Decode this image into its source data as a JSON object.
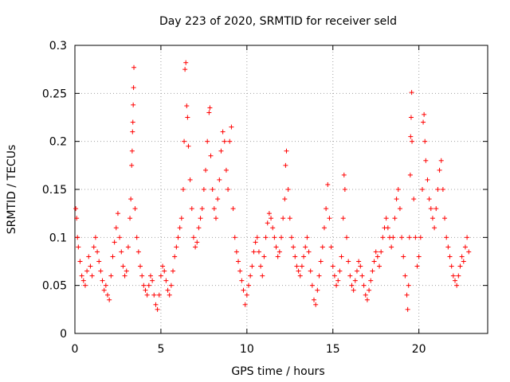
{
  "chart_data": {
    "type": "scatter",
    "title": "Day 223 of 2020, SRMTID for receiver seld",
    "xlabel": "GPS time / hours",
    "ylabel": "SRMTID / TECUs",
    "xlim": [
      0,
      24
    ],
    "ylim": [
      0,
      0.3
    ],
    "xticks": [
      0,
      5,
      10,
      15,
      20
    ],
    "xtick_labels": [
      "0",
      "5",
      "10",
      "15",
      "20"
    ],
    "yticks": [
      0,
      0.05,
      0.1,
      0.15,
      0.2,
      0.25,
      0.3
    ],
    "ytick_labels": [
      "0",
      "0.05",
      "0.1",
      "0.15",
      "0.2",
      "0.25",
      "0.3"
    ],
    "grid": true,
    "marker": "plus",
    "marker_color": "#ff0000",
    "series": [
      {
        "name": "SRMTID",
        "points": [
          [
            0.05,
            0.13
          ],
          [
            0.1,
            0.12
          ],
          [
            0.15,
            0.1
          ],
          [
            0.2,
            0.09
          ],
          [
            0.3,
            0.075
          ],
          [
            0.4,
            0.06
          ],
          [
            0.5,
            0.055
          ],
          [
            0.6,
            0.05
          ],
          [
            0.7,
            0.065
          ],
          [
            0.8,
            0.08
          ],
          [
            0.9,
            0.07
          ],
          [
            1.0,
            0.06
          ],
          [
            1.1,
            0.09
          ],
          [
            1.2,
            0.1
          ],
          [
            1.3,
            0.085
          ],
          [
            1.4,
            0.075
          ],
          [
            1.5,
            0.065
          ],
          [
            1.6,
            0.055
          ],
          [
            1.7,
            0.045
          ],
          [
            1.8,
            0.05
          ],
          [
            1.9,
            0.04
          ],
          [
            2.0,
            0.035
          ],
          [
            2.1,
            0.06
          ],
          [
            2.2,
            0.08
          ],
          [
            2.3,
            0.095
          ],
          [
            2.4,
            0.11
          ],
          [
            2.5,
            0.125
          ],
          [
            2.6,
            0.1
          ],
          [
            2.7,
            0.085
          ],
          [
            2.8,
            0.07
          ],
          [
            2.9,
            0.06
          ],
          [
            3.0,
            0.065
          ],
          [
            3.1,
            0.09
          ],
          [
            3.2,
            0.12
          ],
          [
            3.25,
            0.14
          ],
          [
            3.3,
            0.175
          ],
          [
            3.33,
            0.19
          ],
          [
            3.35,
            0.21
          ],
          [
            3.37,
            0.22
          ],
          [
            3.39,
            0.238
          ],
          [
            3.41,
            0.256
          ],
          [
            3.43,
            0.277
          ],
          [
            3.5,
            0.13
          ],
          [
            3.6,
            0.1
          ],
          [
            3.7,
            0.085
          ],
          [
            3.8,
            0.07
          ],
          [
            3.9,
            0.06
          ],
          [
            4.0,
            0.05
          ],
          [
            4.1,
            0.045
          ],
          [
            4.2,
            0.04
          ],
          [
            4.3,
            0.05
          ],
          [
            4.4,
            0.06
          ],
          [
            4.5,
            0.055
          ],
          [
            4.6,
            0.04
          ],
          [
            4.7,
            0.03
          ],
          [
            4.8,
            0.025
          ],
          [
            4.9,
            0.04
          ],
          [
            5.0,
            0.06
          ],
          [
            5.1,
            0.07
          ],
          [
            5.2,
            0.065
          ],
          [
            5.3,
            0.055
          ],
          [
            5.4,
            0.045
          ],
          [
            5.5,
            0.04
          ],
          [
            5.6,
            0.05
          ],
          [
            5.7,
            0.065
          ],
          [
            5.8,
            0.08
          ],
          [
            5.9,
            0.09
          ],
          [
            6.0,
            0.1
          ],
          [
            6.1,
            0.11
          ],
          [
            6.2,
            0.12
          ],
          [
            6.3,
            0.15
          ],
          [
            6.35,
            0.2
          ],
          [
            6.4,
            0.275
          ],
          [
            6.45,
            0.282
          ],
          [
            6.5,
            0.237
          ],
          [
            6.55,
            0.225
          ],
          [
            6.6,
            0.195
          ],
          [
            6.7,
            0.16
          ],
          [
            6.8,
            0.13
          ],
          [
            6.9,
            0.1
          ],
          [
            7.0,
            0.09
          ],
          [
            7.1,
            0.095
          ],
          [
            7.2,
            0.11
          ],
          [
            7.3,
            0.12
          ],
          [
            7.4,
            0.13
          ],
          [
            7.5,
            0.15
          ],
          [
            7.6,
            0.17
          ],
          [
            7.7,
            0.2
          ],
          [
            7.8,
            0.23
          ],
          [
            7.85,
            0.235
          ],
          [
            7.9,
            0.185
          ],
          [
            8.0,
            0.15
          ],
          [
            8.1,
            0.13
          ],
          [
            8.2,
            0.12
          ],
          [
            8.3,
            0.14
          ],
          [
            8.4,
            0.16
          ],
          [
            8.5,
            0.19
          ],
          [
            8.6,
            0.21
          ],
          [
            8.7,
            0.2
          ],
          [
            8.8,
            0.17
          ],
          [
            8.9,
            0.15
          ],
          [
            9.0,
            0.2
          ],
          [
            9.1,
            0.215
          ],
          [
            9.2,
            0.13
          ],
          [
            9.3,
            0.1
          ],
          [
            9.4,
            0.085
          ],
          [
            9.5,
            0.075
          ],
          [
            9.6,
            0.065
          ],
          [
            9.7,
            0.055
          ],
          [
            9.8,
            0.045
          ],
          [
            9.9,
            0.03
          ],
          [
            10.0,
            0.04
          ],
          [
            10.1,
            0.05
          ],
          [
            10.2,
            0.06
          ],
          [
            10.3,
            0.07
          ],
          [
            10.4,
            0.085
          ],
          [
            10.5,
            0.095
          ],
          [
            10.6,
            0.1
          ],
          [
            10.7,
            0.085
          ],
          [
            10.8,
            0.07
          ],
          [
            10.9,
            0.06
          ],
          [
            11.0,
            0.08
          ],
          [
            11.1,
            0.1
          ],
          [
            11.2,
            0.115
          ],
          [
            11.3,
            0.125
          ],
          [
            11.4,
            0.12
          ],
          [
            11.5,
            0.11
          ],
          [
            11.6,
            0.1
          ],
          [
            11.7,
            0.09
          ],
          [
            11.8,
            0.08
          ],
          [
            11.9,
            0.085
          ],
          [
            12.0,
            0.1
          ],
          [
            12.1,
            0.12
          ],
          [
            12.2,
            0.14
          ],
          [
            12.25,
            0.175
          ],
          [
            12.3,
            0.19
          ],
          [
            12.4,
            0.15
          ],
          [
            12.5,
            0.12
          ],
          [
            12.6,
            0.1
          ],
          [
            12.7,
            0.09
          ],
          [
            12.8,
            0.08
          ],
          [
            12.9,
            0.07
          ],
          [
            13.0,
            0.065
          ],
          [
            13.1,
            0.06
          ],
          [
            13.2,
            0.07
          ],
          [
            13.3,
            0.08
          ],
          [
            13.4,
            0.09
          ],
          [
            13.5,
            0.1
          ],
          [
            13.6,
            0.085
          ],
          [
            13.7,
            0.065
          ],
          [
            13.8,
            0.05
          ],
          [
            13.9,
            0.035
          ],
          [
            14.0,
            0.03
          ],
          [
            14.1,
            0.045
          ],
          [
            14.2,
            0.06
          ],
          [
            14.3,
            0.075
          ],
          [
            14.4,
            0.09
          ],
          [
            14.5,
            0.11
          ],
          [
            14.6,
            0.13
          ],
          [
            14.7,
            0.155
          ],
          [
            14.8,
            0.12
          ],
          [
            14.9,
            0.09
          ],
          [
            15.0,
            0.07
          ],
          [
            15.1,
            0.06
          ],
          [
            15.2,
            0.05
          ],
          [
            15.3,
            0.055
          ],
          [
            15.4,
            0.065
          ],
          [
            15.5,
            0.08
          ],
          [
            15.6,
            0.12
          ],
          [
            15.65,
            0.165
          ],
          [
            15.7,
            0.15
          ],
          [
            15.8,
            0.1
          ],
          [
            15.9,
            0.075
          ],
          [
            16.0,
            0.06
          ],
          [
            16.1,
            0.05
          ],
          [
            16.2,
            0.045
          ],
          [
            16.3,
            0.055
          ],
          [
            16.4,
            0.065
          ],
          [
            16.5,
            0.075
          ],
          [
            16.6,
            0.07
          ],
          [
            16.7,
            0.06
          ],
          [
            16.8,
            0.05
          ],
          [
            16.9,
            0.04
          ],
          [
            17.0,
            0.035
          ],
          [
            17.1,
            0.045
          ],
          [
            17.2,
            0.055
          ],
          [
            17.3,
            0.065
          ],
          [
            17.4,
            0.075
          ],
          [
            17.5,
            0.085
          ],
          [
            17.6,
            0.08
          ],
          [
            17.7,
            0.07
          ],
          [
            17.8,
            0.085
          ],
          [
            17.9,
            0.1
          ],
          [
            18.0,
            0.11
          ],
          [
            18.1,
            0.12
          ],
          [
            18.2,
            0.11
          ],
          [
            18.3,
            0.1
          ],
          [
            18.4,
            0.09
          ],
          [
            18.5,
            0.1
          ],
          [
            18.6,
            0.12
          ],
          [
            18.7,
            0.14
          ],
          [
            18.8,
            0.15
          ],
          [
            18.9,
            0.13
          ],
          [
            19.0,
            0.1
          ],
          [
            19.1,
            0.08
          ],
          [
            19.2,
            0.06
          ],
          [
            19.3,
            0.04
          ],
          [
            19.35,
            0.025
          ],
          [
            19.4,
            0.05
          ],
          [
            19.45,
            0.1
          ],
          [
            19.5,
            0.165
          ],
          [
            19.52,
            0.205
          ],
          [
            19.55,
            0.225
          ],
          [
            19.58,
            0.251
          ],
          [
            19.6,
            0.2
          ],
          [
            19.7,
            0.14
          ],
          [
            19.8,
            0.1
          ],
          [
            19.9,
            0.07
          ],
          [
            20.0,
            0.08
          ],
          [
            20.1,
            0.1
          ],
          [
            20.2,
            0.15
          ],
          [
            20.25,
            0.22
          ],
          [
            20.3,
            0.228
          ],
          [
            20.35,
            0.2
          ],
          [
            20.4,
            0.18
          ],
          [
            20.5,
            0.16
          ],
          [
            20.6,
            0.14
          ],
          [
            20.7,
            0.13
          ],
          [
            20.8,
            0.12
          ],
          [
            20.9,
            0.11
          ],
          [
            21.0,
            0.13
          ],
          [
            21.1,
            0.15
          ],
          [
            21.2,
            0.17
          ],
          [
            21.3,
            0.18
          ],
          [
            21.4,
            0.15
          ],
          [
            21.5,
            0.12
          ],
          [
            21.6,
            0.1
          ],
          [
            21.7,
            0.09
          ],
          [
            21.8,
            0.08
          ],
          [
            21.9,
            0.07
          ],
          [
            22.0,
            0.06
          ],
          [
            22.1,
            0.055
          ],
          [
            22.2,
            0.05
          ],
          [
            22.3,
            0.06
          ],
          [
            22.4,
            0.07
          ],
          [
            22.5,
            0.08
          ],
          [
            22.6,
            0.075
          ],
          [
            22.7,
            0.09
          ],
          [
            22.8,
            0.1
          ],
          [
            22.9,
            0.085
          ]
        ]
      }
    ]
  }
}
